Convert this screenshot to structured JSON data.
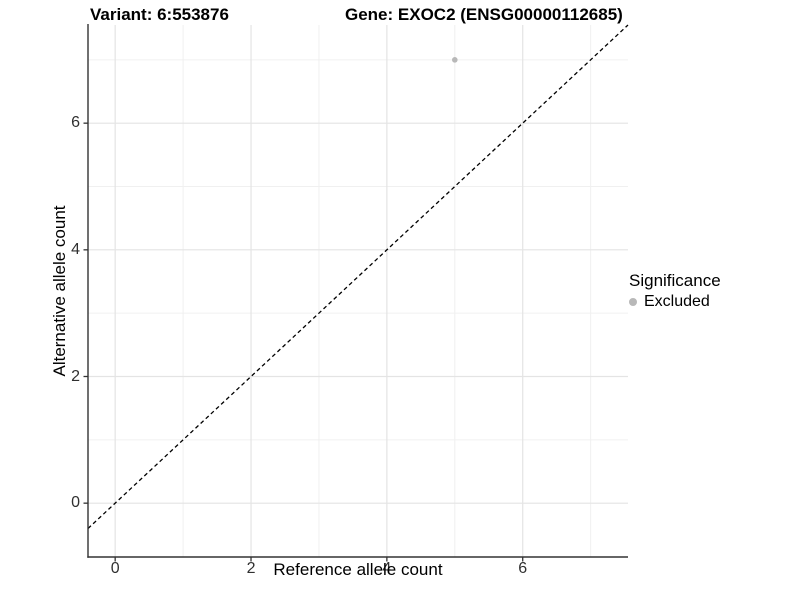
{
  "chart_data": {
    "type": "scatter",
    "title_left": "Variant: 6:553876",
    "title_right": "Gene: EXOC2 (ENSG00000112685)",
    "xlabel": "Reference allele count",
    "ylabel": "Alternative allele count",
    "xlim": [
      -0.4,
      7.55
    ],
    "ylim": [
      -0.85,
      7.55
    ],
    "x_ticks": [
      0,
      2,
      4,
      6
    ],
    "y_ticks": [
      0,
      2,
      4,
      6
    ],
    "x_minor_ticks": [
      1,
      3,
      5,
      7
    ],
    "y_minor_ticks": [
      1,
      3,
      5,
      7
    ],
    "grid": true,
    "points": [
      {
        "x": 5,
        "y": 7,
        "series": "Excluded"
      }
    ],
    "reference_line": {
      "kind": "abline",
      "slope": 1,
      "intercept": 0,
      "style": "dashed",
      "color": "#000000"
    },
    "legend": {
      "title": "Significance",
      "position": "right",
      "entries": [
        {
          "label": "Excluded",
          "color": "#b8b8b8",
          "marker": "circle"
        }
      ]
    },
    "colors": {
      "background": "#ffffff",
      "major_grid": "#e4e4e4",
      "minor_grid": "#f0f0f0",
      "axis_line": "#333333",
      "tick_mark": "#333333",
      "point": "#b8b8b8"
    }
  }
}
